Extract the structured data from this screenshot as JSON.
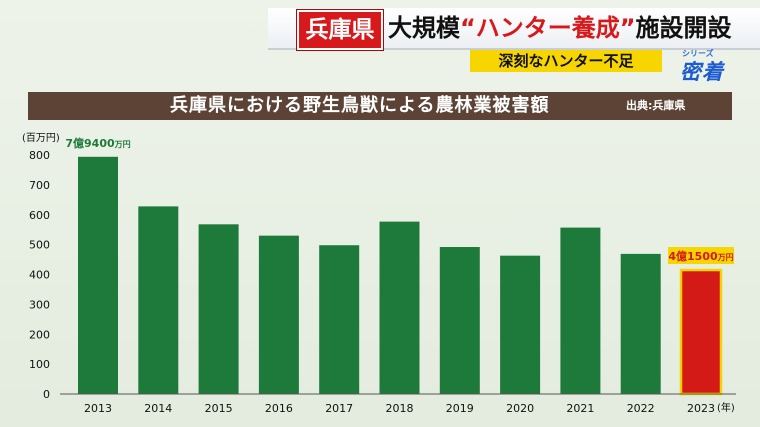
{
  "header": {
    "tag": "兵庫県",
    "headline_pre": "大規模",
    "headline_highlight": "“ハンター養成”",
    "headline_post": "施設開設",
    "subheading": "深刻なハンター不足",
    "logo_small": "シリーズ",
    "logo_main": "密着"
  },
  "chart_data": {
    "type": "bar",
    "title": "兵庫県における野生鳥獣による農林業被害額",
    "source": "出典:兵庫県",
    "ylabel": "(百万円)",
    "xlabel": "(年)",
    "ylim": [
      0,
      800
    ],
    "yticks": [
      0,
      100,
      200,
      300,
      400,
      500,
      600,
      700,
      800
    ],
    "categories": [
      "2013",
      "2014",
      "2015",
      "2016",
      "2017",
      "2018",
      "2019",
      "2020",
      "2021",
      "2022",
      "2023"
    ],
    "values": [
      794,
      628,
      568,
      530,
      498,
      577,
      492,
      463,
      557,
      469,
      415
    ],
    "colors": {
      "default": "#1e7a3a",
      "highlight": "#d41a16",
      "highlight_border": "#f4d400"
    },
    "highlight_index": 10,
    "annotations": [
      {
        "index": 0,
        "text_main": "7億9400",
        "text_unit": "万円",
        "color": "#1e7a3a"
      },
      {
        "index": 10,
        "text_main": "4億1500",
        "text_unit": "万円",
        "color": "#d41a16"
      }
    ],
    "grid": false,
    "legend": "none"
  }
}
